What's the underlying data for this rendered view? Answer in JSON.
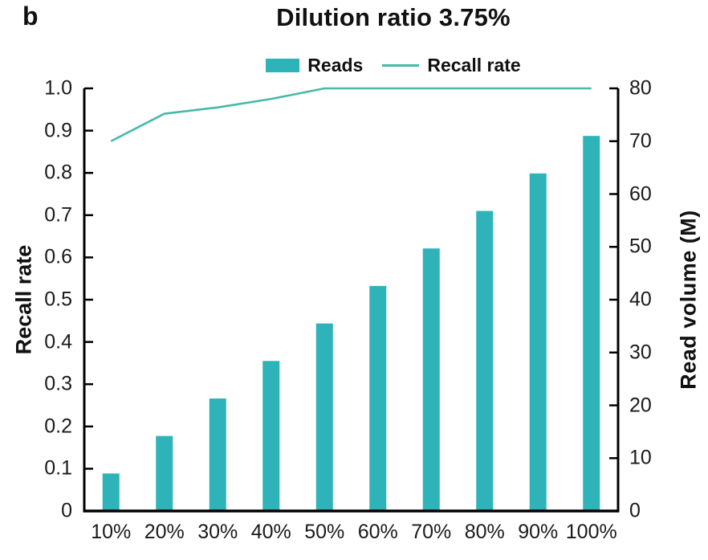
{
  "panel_label": "b",
  "title": "Dilution ratio 3.75%",
  "legend": {
    "reads_label": "Reads",
    "recall_label": "Recall rate"
  },
  "colors": {
    "bar": "#2eb3b9",
    "line": "#48b9a7",
    "axis": "#000000",
    "text": "#1a1a1a"
  },
  "chart_data": {
    "type": "bar",
    "subtype": "bar+line dual-axis",
    "title": "Dilution ratio 3.75%",
    "categories": [
      "10%",
      "20%",
      "30%",
      "40%",
      "50%",
      "60%",
      "70%",
      "80%",
      "90%",
      "100%"
    ],
    "series": [
      {
        "name": "Reads",
        "type": "bar",
        "axis": "right",
        "values": [
          7.1,
          14.2,
          21.3,
          28.4,
          35.5,
          42.6,
          49.7,
          56.8,
          63.9,
          71.0
        ]
      },
      {
        "name": "Recall rate",
        "type": "line",
        "axis": "left",
        "values": [
          0.875,
          0.94,
          0.955,
          0.975,
          1.0,
          1.0,
          1.0,
          1.0,
          1.0,
          1.0
        ]
      }
    ],
    "left_axis": {
      "title": "Recall rate",
      "min": 0,
      "max": 1.0,
      "tick_labels": [
        "0",
        "0.1",
        "0.2",
        "0.3",
        "0.4",
        "0.5",
        "0.6",
        "0.7",
        "0.8",
        "0.9",
        "1.0"
      ]
    },
    "right_axis": {
      "title": "Read volume (M)",
      "min": 0,
      "max": 80,
      "tick_labels": [
        "0",
        "10",
        "20",
        "30",
        "40",
        "50",
        "60",
        "70",
        "80"
      ]
    },
    "legend_position": "top-center",
    "grid": false
  }
}
